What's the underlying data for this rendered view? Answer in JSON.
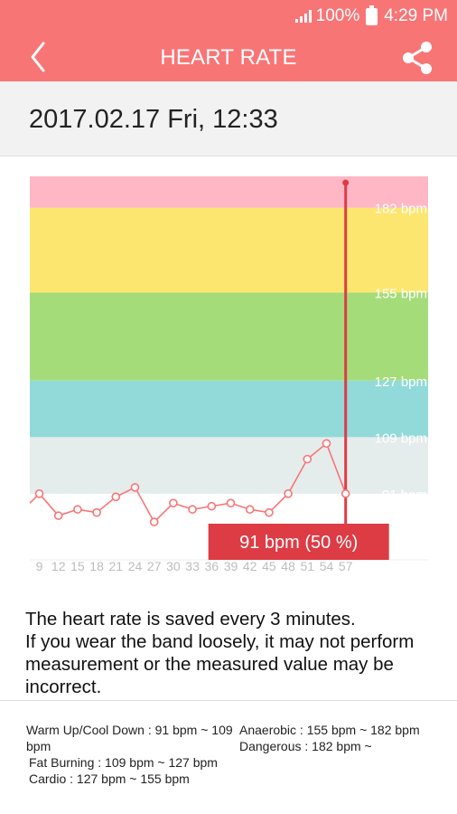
{
  "status_bar": {
    "battery_text": "100%",
    "time": "4:29 PM",
    "icons": [
      "signal-icon",
      "battery-icon"
    ]
  },
  "app_bar": {
    "title": "HEART RATE",
    "back_icon": "chevron-left-icon",
    "share_icon": "share-icon"
  },
  "date_header": {
    "datetime": "2017.02.17 Fri, 12:33"
  },
  "chart_data": {
    "type": "line",
    "x": [
      9,
      12,
      15,
      18,
      21,
      24,
      27,
      30,
      33,
      36,
      39,
      42,
      45,
      48,
      51,
      54,
      57
    ],
    "x_tick_labels": [
      "9",
      "12",
      "15",
      "18",
      "21",
      "24",
      "27",
      "30",
      "33",
      "36",
      "39",
      "42",
      "45",
      "48",
      "51",
      "54",
      "57"
    ],
    "series": [
      {
        "values": [
          91,
          84,
          86,
          85,
          90,
          93,
          82,
          88,
          86,
          87,
          88,
          86,
          85,
          91,
          102,
          107,
          91
        ],
        "color": "#f87576"
      }
    ],
    "leading_value": 88,
    "ylim": [
      78,
      192
    ],
    "zones": [
      {
        "from": 78,
        "to": 91,
        "color": "#e5ecec"
      },
      {
        "from": 91,
        "to": 109,
        "color": "#e5ecec"
      },
      {
        "from": 109,
        "to": 127,
        "color": "#91dad9"
      },
      {
        "from": 127,
        "to": 155,
        "color": "#a5dc7a"
      },
      {
        "from": 155,
        "to": 182,
        "color": "#fde66f"
      },
      {
        "from": 182,
        "to": 192,
        "color": "#ffb7c6"
      }
    ],
    "zone_labels": [
      "182 bpm",
      "155 bpm",
      "127 bpm",
      "109 bpm",
      "91 bpm"
    ],
    "zone_label_values": [
      182,
      155,
      127,
      109,
      91
    ],
    "selected_index": 16,
    "selected_label": "91 bpm  (50 %)",
    "marker_color": "#dd3c45",
    "label_box_color": "#dd3c45"
  },
  "description": {
    "line1": "The heart rate is saved every 3 minutes.",
    "line2": "If you wear the band loosely, it may not perform measurement or the measured value may be incorrect."
  },
  "legend": {
    "warm_up": "Warm Up/Cool Down : 91 bpm ~ 109 bpm",
    "fat_burning": "Fat Burning : 109 bpm ~ 127 bpm",
    "cardio": "Cardio : 127 bpm ~ 155 bpm",
    "anaerobic": "Anaerobic : 155 bpm ~ 182 bpm",
    "dangerous": "Dangerous : 182 bpm ~"
  }
}
